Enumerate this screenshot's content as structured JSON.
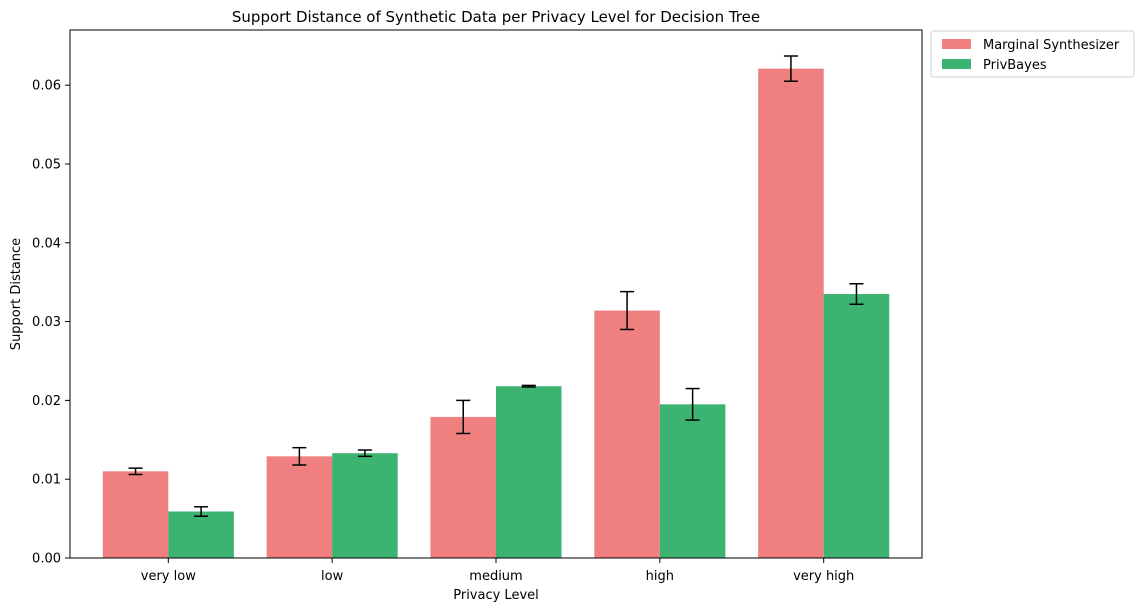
{
  "chart_data": {
    "type": "bar",
    "title": "Support Distance of Synthetic Data per Privacy Level for Decision Tree",
    "xlabel": "Privacy Level",
    "ylabel": "Support Distance",
    "categories": [
      "very low",
      "low",
      "medium",
      "high",
      "very high"
    ],
    "series": [
      {
        "name": "Marginal Synthesizer",
        "color": "#f08080",
        "values": [
          0.011,
          0.0129,
          0.0179,
          0.0314,
          0.0621
        ],
        "errors": [
          0.0004,
          0.0011,
          0.0021,
          0.0024,
          0.0016
        ]
      },
      {
        "name": "PrivBayes",
        "color": "#3cb371",
        "values": [
          0.0059,
          0.0133,
          0.0218,
          0.0195,
          0.0335
        ],
        "errors": [
          0.0006,
          0.0004,
          0.0001,
          0.002,
          0.0013
        ]
      }
    ],
    "ylim": [
      0,
      0.067
    ],
    "yticks": [
      "0.00",
      "0.01",
      "0.02",
      "0.03",
      "0.04",
      "0.05",
      "0.06"
    ],
    "legend": "outside-top-right",
    "grid": false
  }
}
